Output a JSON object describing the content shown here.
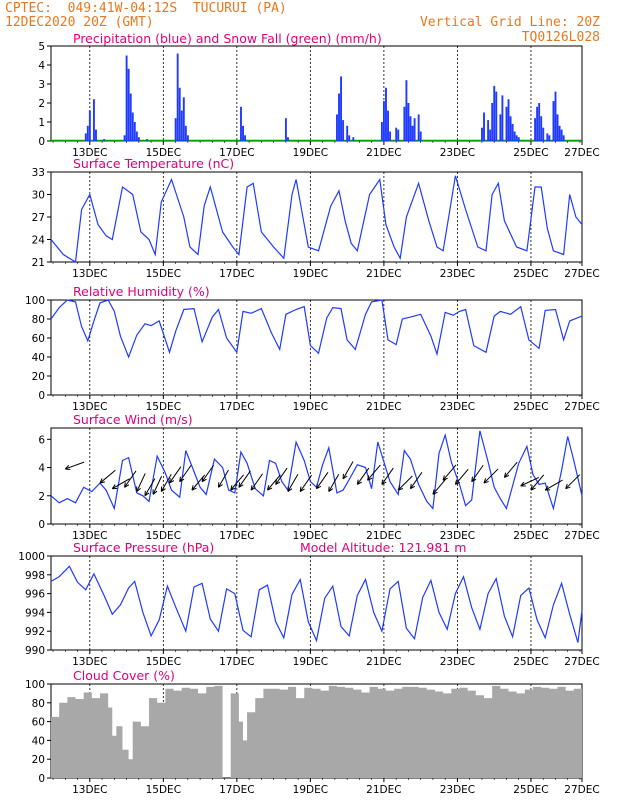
{
  "header": {
    "station": "CPTEC:  049:41W-04:12S  TUCURUI (PA)",
    "date": "12DEC2020 20Z (GMT)",
    "grid_note": "Vertical Grid Line: 20Z",
    "code": "TQ0126L028"
  },
  "colors": {
    "header": "#e8781e",
    "title": "#e0007a",
    "line": "#1f3bff",
    "snow": "#00a000",
    "cloud": "#a8a8a8",
    "grid": "#000000"
  },
  "x_ticks": [
    "13DEC",
    "15DEC",
    "17DEC",
    "19DEC",
    "21DEC",
    "23DEC",
    "25DEC",
    "27DEC"
  ],
  "chart_data": [
    {
      "type": "bar",
      "title": "Precipitation (blue) and Snow Fall (green) (mm/h)",
      "x_unit": "hours since 12DEC2020 20Z",
      "yticks": [
        "0",
        "1",
        "2",
        "3",
        "4",
        "5"
      ],
      "ylim": [
        0,
        5
      ],
      "series": [
        {
          "name": "Precipitation",
          "x": [
            17,
            18,
            19,
            21,
            22,
            26,
            36,
            37,
            38,
            39,
            40,
            41,
            42,
            43,
            47,
            61,
            62,
            63,
            64,
            65,
            66,
            67,
            93,
            94,
            95,
            115,
            116,
            140,
            141,
            142,
            143,
            145,
            146,
            148,
            162,
            163,
            164,
            165,
            166,
            169,
            170,
            173,
            174,
            175,
            176,
            177,
            178,
            180,
            181,
            211,
            212,
            214,
            215,
            216,
            217,
            218,
            220,
            221,
            223,
            224,
            225,
            226,
            227,
            228,
            229,
            237,
            238,
            239,
            240,
            241,
            243,
            244,
            246,
            247,
            248,
            249,
            250,
            251
          ],
          "y": [
            0.4,
            0.8,
            1.6,
            2.2,
            0.6,
            0.1,
            0.3,
            4.5,
            3.8,
            2.5,
            1.5,
            1.0,
            0.5,
            0.2,
            0.1,
            1.2,
            4.6,
            2.8,
            1.6,
            2.3,
            0.8,
            0.3,
            1.8,
            0.8,
            0.3,
            1.2,
            0.2,
            1.4,
            2.5,
            3.4,
            1.1,
            0.8,
            0.3,
            0.2,
            1.0,
            2.1,
            2.8,
            1.6,
            0.5,
            0.7,
            0.6,
            1.8,
            3.2,
            2.0,
            1.3,
            0.8,
            1.2,
            1.4,
            0.5,
            0.7,
            1.5,
            1.1,
            0.6,
            2.0,
            2.9,
            2.6,
            1.4,
            2.4,
            1.8,
            2.2,
            1.3,
            0.9,
            0.5,
            0.3,
            0.2,
            1.2,
            1.8,
            2.0,
            1.3,
            0.7,
            0.4,
            0.3,
            2.1,
            2.6,
            1.4,
            0.8,
            0.6,
            0.3
          ]
        },
        {
          "name": "Snow Fall",
          "x": [],
          "y": []
        }
      ]
    },
    {
      "type": "line",
      "title": "Surface Temperature (nC)",
      "x_unit": "hours since 12DEC2020 20Z",
      "yticks": [
        "21",
        "24",
        "27",
        "30",
        "33"
      ],
      "ylim": [
        21,
        33
      ],
      "series": [
        {
          "name": "Temperature",
          "x": [
            0,
            6,
            12,
            15,
            19,
            23,
            27,
            30,
            35,
            40,
            44,
            48,
            51,
            54,
            59,
            65,
            68,
            72,
            75,
            78,
            84,
            89,
            92,
            96,
            99,
            103,
            109,
            114,
            118,
            120,
            123,
            126,
            131,
            137,
            141,
            144,
            147,
            150,
            156,
            161,
            164,
            168,
            171,
            174,
            180,
            185,
            189,
            192,
            195,
            198,
            203,
            209,
            213,
            216,
            219,
            222,
            228,
            233,
            237,
            240,
            243,
            246,
            251,
            254,
            257,
            260
          ],
          "y": [
            24.0,
            22.0,
            21.0,
            28.0,
            30.0,
            26.0,
            24.5,
            24.0,
            31.0,
            30.0,
            25.0,
            24.0,
            22.0,
            29.0,
            32.0,
            27.0,
            23.0,
            22.0,
            28.5,
            31.0,
            25.0,
            23.0,
            22.0,
            31.0,
            31.5,
            25.0,
            23.0,
            21.5,
            30.0,
            32.0,
            27.5,
            23.0,
            22.5,
            28.5,
            30.5,
            26.5,
            23.5,
            22.5,
            30.0,
            32.0,
            26.0,
            23.0,
            21.5,
            27.0,
            31.5,
            26.5,
            23.0,
            22.5,
            27.5,
            32.5,
            28.0,
            23.0,
            22.5,
            30.0,
            31.5,
            26.5,
            23.0,
            22.5,
            31.0,
            31.0,
            25.5,
            22.5,
            22.0,
            30.0,
            27.0,
            26.0
          ]
        }
      ]
    },
    {
      "type": "line",
      "title": "Relative Humidity (%)",
      "x_unit": "hours since 12DEC2020 20Z",
      "yticks": [
        "0",
        "20",
        "40",
        "60",
        "80",
        "100"
      ],
      "ylim": [
        0,
        100
      ],
      "series": [
        {
          "name": "Relative Humidity",
          "x": [
            0,
            4,
            8,
            12,
            15,
            18,
            21,
            24,
            28,
            31,
            34,
            38,
            42,
            46,
            49,
            53,
            58,
            61,
            65,
            70,
            74,
            79,
            82,
            86,
            91,
            94,
            98,
            103,
            108,
            112,
            115,
            120,
            124,
            127,
            131,
            135,
            138,
            142,
            145,
            149,
            154,
            157,
            162,
            165,
            169,
            172,
            176,
            181,
            186,
            189,
            193,
            197,
            200,
            203,
            207,
            213,
            217,
            220,
            225,
            230,
            234,
            239,
            242,
            247,
            251,
            254,
            260
          ],
          "y": [
            80,
            92,
            100,
            98,
            72,
            57,
            78,
            97,
            100,
            88,
            62,
            40,
            63,
            75,
            73,
            78,
            45,
            67,
            90,
            91,
            56,
            82,
            90,
            60,
            45,
            88,
            86,
            91,
            65,
            48,
            85,
            90,
            93,
            52,
            44,
            81,
            92,
            91,
            58,
            48,
            85,
            98,
            100,
            58,
            53,
            80,
            82,
            85,
            62,
            43,
            87,
            84,
            88,
            90,
            52,
            45,
            83,
            88,
            85,
            93,
            58,
            49,
            89,
            90,
            58,
            78,
            83
          ]
        }
      ]
    },
    {
      "type": "line",
      "title": "Surface Wind (m/s)",
      "x_unit": "hours since 12DEC2020 20Z",
      "yticks": [
        "0",
        "2",
        "4",
        "6"
      ],
      "ylim": [
        0,
        6.8
      ],
      "series": [
        {
          "name": "Wind Speed",
          "x": [
            0,
            4,
            8,
            12,
            16,
            20,
            24,
            27,
            31,
            35,
            38,
            42,
            45,
            48,
            52,
            56,
            59,
            63,
            66,
            69,
            73,
            76,
            80,
            84,
            87,
            90,
            93,
            96,
            100,
            104,
            107,
            110,
            113,
            116,
            120,
            124,
            127,
            130,
            133,
            136,
            140,
            143,
            147,
            150,
            154,
            157,
            160,
            163,
            166,
            170,
            173,
            176,
            180,
            184,
            187,
            190,
            193,
            196,
            200,
            203,
            206,
            210,
            214,
            217,
            220,
            223,
            226,
            229,
            233,
            236,
            239,
            242,
            246,
            250,
            253,
            256,
            260
          ],
          "y": [
            2.0,
            1.5,
            1.8,
            1.5,
            2.6,
            2.3,
            2.9,
            2.4,
            1.1,
            4.5,
            4.7,
            2.2,
            2.0,
            1.6,
            4.8,
            3.6,
            2.4,
            1.9,
            5.2,
            4.1,
            2.6,
            2.1,
            4.6,
            4.0,
            2.4,
            2.2,
            5.1,
            4.3,
            2.5,
            2.0,
            4.5,
            4.3,
            3.0,
            2.4,
            5.8,
            4.5,
            3.0,
            2.6,
            4.2,
            5.4,
            2.2,
            2.4,
            3.4,
            4.2,
            4.0,
            2.5,
            5.8,
            4.4,
            3.0,
            2.1,
            5.2,
            4.6,
            2.8,
            1.6,
            1.1,
            5.0,
            6.3,
            4.4,
            2.8,
            1.3,
            1.7,
            6.6,
            4.4,
            2.6,
            1.8,
            1.1,
            2.7,
            4.3,
            5.5,
            3.5,
            2.8,
            2.9,
            1.1,
            3.8,
            6.2,
            4.5,
            2.0
          ]
        },
        {
          "name": "Wind Direction",
          "x": [
            7,
            24,
            30,
            36,
            42,
            46,
            50,
            54,
            58,
            63,
            69,
            74,
            82,
            88,
            92,
            98,
            106,
            110,
            116,
            122,
            130,
            136,
            143,
            150,
            155,
            162,
            170,
            176,
            187,
            192,
            198,
            206,
            212,
            222,
            230,
            235,
            242,
            252
          ],
          "y": [
            3.9,
            2.9,
            2.5,
            2.6,
            2.3,
            2.0,
            2.1,
            2.3,
            2.9,
            3.0,
            2.4,
            3.0,
            2.6,
            2.4,
            2.6,
            2.4,
            2.4,
            2.8,
            2.3,
            2.3,
            2.5,
            2.3,
            3.2,
            2.8,
            3.1,
            2.8,
            2.4,
            2.5,
            2.1,
            3.1,
            2.8,
            3.0,
            2.9,
            3.3,
            2.7,
            2.4,
            2.4,
            2.5
          ],
          "dir_deg": [
            20,
            40,
            30,
            55,
            65,
            60,
            65,
            60,
            55,
            55,
            50,
            55,
            60,
            50,
            55,
            55,
            50,
            55,
            60,
            55,
            55,
            60,
            60,
            55,
            50,
            55,
            45,
            55,
            50,
            50,
            50,
            55,
            45,
            50,
            25,
            50,
            30,
            45
          ]
        }
      ]
    },
    {
      "type": "line",
      "title": "Surface Pressure (hPa)",
      "annotation": "Model Altitude: 121.981 m",
      "x_unit": "hours since 12DEC2020 20Z",
      "yticks": [
        "990",
        "992",
        "994",
        "996",
        "998",
        "1000"
      ],
      "ylim": [
        990,
        1000
      ],
      "series": [
        {
          "name": "Pressure",
          "x": [
            0,
            4,
            9,
            13,
            17,
            21,
            26,
            30,
            34,
            38,
            41,
            45,
            49,
            53,
            57,
            61,
            66,
            70,
            74,
            78,
            82,
            86,
            90,
            94,
            98,
            102,
            106,
            110,
            114,
            118,
            122,
            126,
            130,
            134,
            138,
            142,
            146,
            150,
            154,
            158,
            162,
            166,
            170,
            174,
            178,
            182,
            186,
            190,
            194,
            198,
            202,
            206,
            210,
            214,
            218,
            222,
            226,
            230,
            234,
            238,
            242,
            246,
            250,
            254,
            258,
            260
          ],
          "y": [
            997.3,
            997.8,
            998.9,
            997.2,
            996.4,
            998.1,
            995.8,
            993.8,
            994.8,
            996.6,
            997.3,
            994.0,
            991.5,
            993.2,
            996.8,
            994.6,
            992.0,
            996.7,
            997.1,
            993.3,
            992.0,
            996.5,
            996.0,
            992.1,
            991.4,
            996.4,
            996.9,
            993.0,
            991.3,
            995.9,
            997.5,
            993.0,
            991.0,
            995.5,
            996.8,
            992.5,
            991.5,
            995.8,
            997.5,
            994.0,
            992.0,
            996.5,
            997.3,
            992.3,
            991.2,
            995.6,
            997.4,
            994.0,
            992.2,
            996.0,
            997.8,
            994.5,
            992.2,
            996.0,
            997.6,
            993.6,
            991.4,
            995.8,
            996.6,
            993.2,
            991.3,
            994.8,
            997.1,
            993.8,
            990.8,
            994.2
          ]
        }
      ]
    },
    {
      "type": "bar",
      "title": "Cloud Cover (%)",
      "x_unit": "hours since 12DEC2020 20Z",
      "yticks": [
        "0",
        "20",
        "40",
        "60",
        "80",
        "100"
      ],
      "ylim": [
        0,
        100
      ],
      "series": [
        {
          "name": "Cloud Cover",
          "x": [
            0,
            4,
            8,
            12,
            16,
            20,
            24,
            28,
            30,
            32,
            35,
            38,
            40,
            44,
            48,
            52,
            56,
            60,
            64,
            68,
            72,
            76,
            80,
            84,
            88,
            92,
            94,
            96,
            100,
            104,
            108,
            112,
            116,
            120,
            124,
            128,
            132,
            136,
            140,
            144,
            148,
            152,
            156,
            160,
            164,
            168,
            172,
            176,
            180,
            184,
            188,
            192,
            196,
            200,
            204,
            208,
            212,
            216,
            220,
            224,
            228,
            232,
            236,
            240,
            244,
            248,
            252,
            256,
            260
          ],
          "y": [
            65,
            80,
            86,
            84,
            91,
            85,
            90,
            75,
            45,
            55,
            30,
            20,
            60,
            55,
            85,
            80,
            95,
            93,
            96,
            95,
            90,
            97,
            98,
            0,
            90,
            60,
            40,
            70,
            85,
            95,
            95,
            94,
            97,
            85,
            96,
            95,
            93,
            98,
            97,
            96,
            94,
            91,
            97,
            95,
            93,
            95,
            97,
            97,
            96,
            94,
            92,
            90,
            95,
            96,
            93,
            88,
            85,
            98,
            95,
            92,
            90,
            94,
            97,
            96,
            95,
            97,
            93,
            95,
            98
          ]
        }
      ]
    }
  ]
}
